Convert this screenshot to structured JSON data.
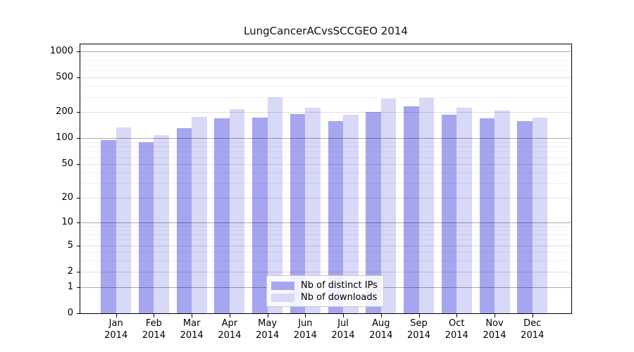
{
  "chart_data": {
    "type": "bar",
    "title": "LungCancerACvsSCCGEO 2014",
    "x_categories": [
      "Jan",
      "Feb",
      "Mar",
      "Apr",
      "May",
      "Jun",
      "Jul",
      "Aug",
      "Sep",
      "Oct",
      "Nov",
      "Dec"
    ],
    "x_year": "2014",
    "series": [
      {
        "name": "Nb of distinct IPs",
        "key": "distinct-ips",
        "color": "#a6a6f0",
        "values": [
          95,
          90,
          130,
          170,
          173,
          190,
          157,
          200,
          236,
          186,
          169,
          159
        ]
      },
      {
        "name": "Nb of downloads",
        "key": "downloads",
        "color": "#d8d8f7",
        "values": [
          133,
          108,
          178,
          219,
          298,
          224,
          188,
          289,
          294,
          224,
          208,
          173
        ]
      }
    ],
    "y_ticks": [
      0,
      1,
      2,
      5,
      10,
      20,
      50,
      100,
      200,
      500,
      1000
    ],
    "y_scale": "log10(1+value)",
    "ylim": [
      0,
      1250
    ],
    "grid": "horizontal",
    "legend_position": "lower center",
    "axis_color": "#000000"
  }
}
